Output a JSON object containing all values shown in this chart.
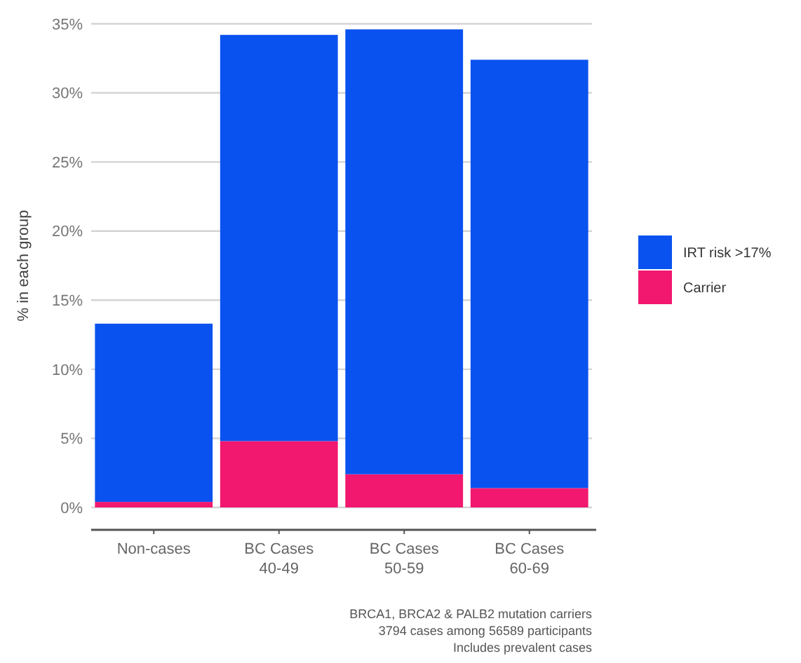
{
  "chart_data": {
    "type": "bar",
    "stacked": true,
    "ylabel": "% in each group",
    "categories": [
      "Non-cases",
      "BC Cases\n40-49",
      "BC Cases\n50-59",
      "BC Cases\n60-69"
    ],
    "series": [
      {
        "name": "Carrier",
        "color": "#f2176f",
        "values": [
          0.4,
          4.8,
          2.4,
          1.4
        ]
      },
      {
        "name": "IRT risk >17%",
        "color": "#0a52f0",
        "values": [
          12.9,
          29.4,
          32.2,
          31.0
        ]
      }
    ],
    "ylim": [
      0,
      35
    ],
    "yticks": [
      {
        "value": 0,
        "label": "0%"
      },
      {
        "value": 5,
        "label": "5%"
      },
      {
        "value": 10,
        "label": "10%"
      },
      {
        "value": 15,
        "label": "15%"
      },
      {
        "value": 20,
        "label": "20%"
      },
      {
        "value": 25,
        "label": "25%"
      },
      {
        "value": 30,
        "label": "30%"
      },
      {
        "value": 35,
        "label": "35%"
      }
    ],
    "grid": "y",
    "legend": "right",
    "annotations": [
      "BRCA1, BRCA2 & PALB2 mutation carriers",
      "3794 cases among 56589 participants",
      "Includes prevalent cases"
    ]
  }
}
